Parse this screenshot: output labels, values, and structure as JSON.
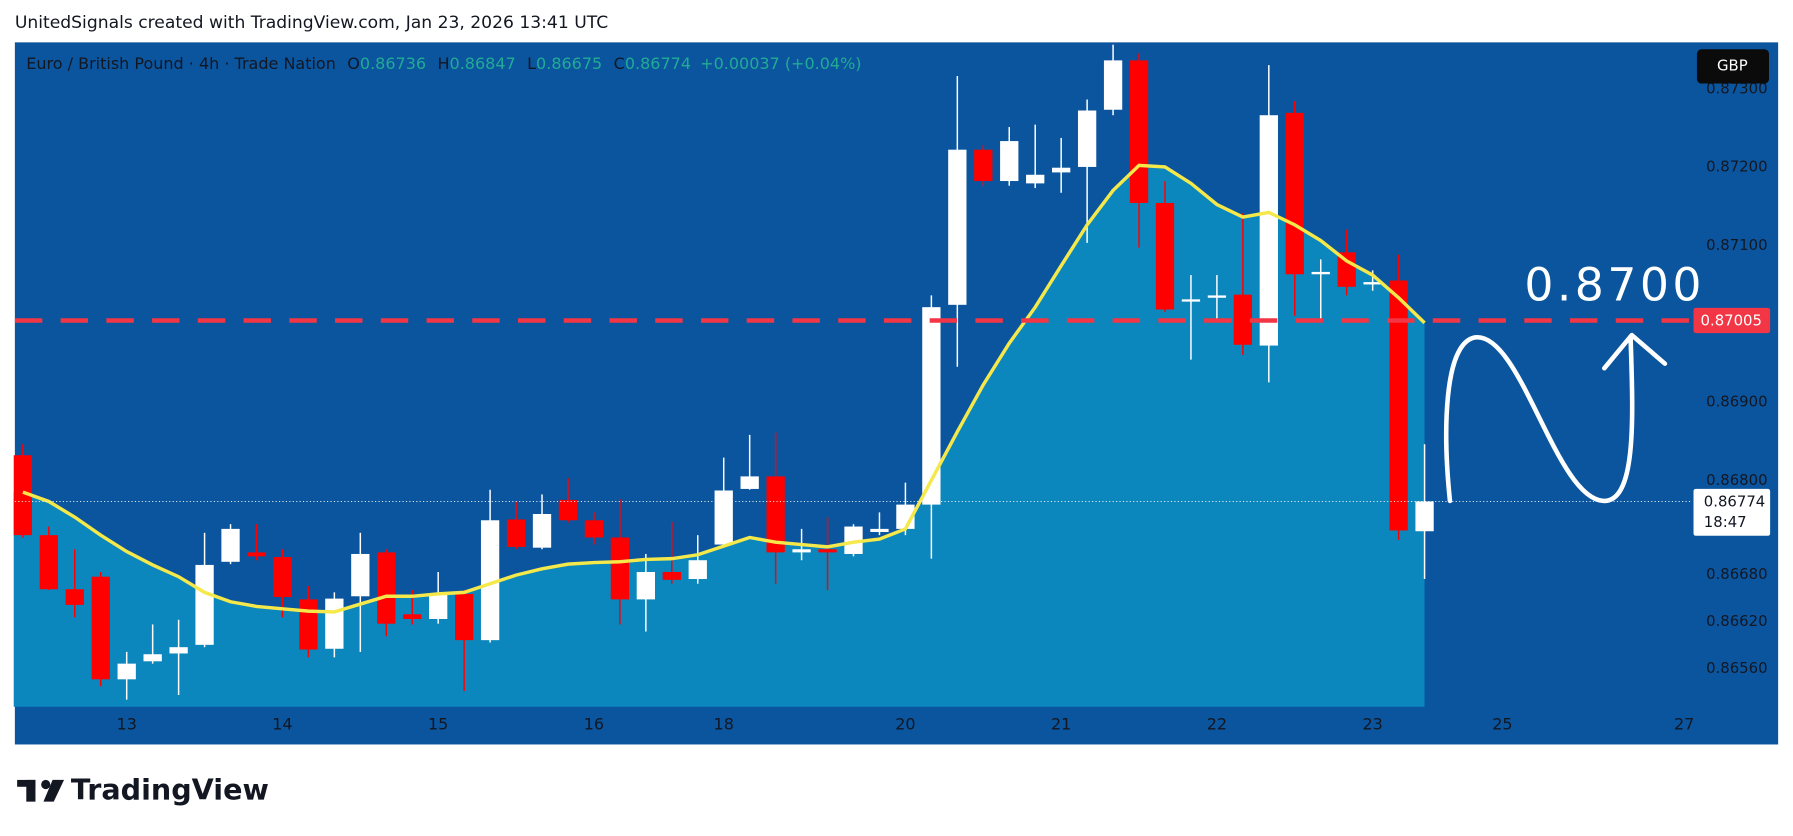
{
  "caption": "UnitedSignals created with TradingView.com, Jan 23, 2026 13:41 UTC",
  "logo_text": "TradingView",
  "chart_data": {
    "type": "candlestick",
    "title": "Euro / British Pound · 4h · Trade Nation",
    "ohlc_letters": [
      "O",
      "H",
      "L",
      "C"
    ],
    "change": "+0.00037 (+0.04%)",
    "currency": "GBP",
    "countdown": "18:47",
    "annotation": "0.8700",
    "up_color": "#ffffff",
    "down_color": "#ff0000",
    "grid": false,
    "categories": [
      null,
      null,
      null,
      null,
      "13",
      null,
      null,
      null,
      null,
      null,
      "14",
      null,
      null,
      null,
      null,
      null,
      "15",
      null,
      null,
      null,
      null,
      null,
      "16",
      null,
      null,
      null,
      null,
      "18",
      null,
      null,
      null,
      null,
      null,
      null,
      "20",
      null,
      null,
      null,
      null,
      null,
      "21",
      null,
      null,
      null,
      null,
      null,
      "22",
      null,
      null,
      null,
      null,
      null,
      "23",
      null,
      null,
      null,
      null,
      "25",
      null,
      null,
      null,
      null,
      null,
      null,
      "27"
    ],
    "open": [
      0.86833,
      0.86731,
      0.86662,
      0.86678,
      0.86547,
      0.8657,
      0.8658,
      0.86591,
      0.86697,
      0.86709,
      0.86703,
      0.86649,
      0.86586,
      0.86653,
      0.86709,
      0.8663,
      0.86624,
      0.86656,
      0.86597,
      0.86751,
      0.86715,
      0.86776,
      0.8675,
      0.86728,
      0.86649,
      0.86684,
      0.86675,
      0.86719,
      0.8679,
      0.86806,
      0.86709,
      0.86713,
      0.86707,
      0.86735,
      0.86739,
      0.8677,
      0.87025,
      0.87223,
      0.87183,
      0.8718,
      0.87194,
      0.87201,
      0.87274,
      0.87337,
      0.87155,
      0.87031,
      0.87034,
      0.87038,
      0.86973,
      0.8727,
      0.87064,
      0.87092,
      0.87051,
      0.87056,
      0.86736,
      null,
      null,
      null,
      null,
      null,
      null,
      null,
      null,
      null,
      null
    ],
    "high": [
      0.86847,
      0.86742,
      0.86713,
      0.86684,
      0.86582,
      0.86617,
      0.86623,
      0.86734,
      0.86745,
      0.86745,
      0.86713,
      0.86666,
      0.86658,
      0.86734,
      0.86713,
      0.86661,
      0.86684,
      0.86661,
      0.86789,
      0.86774,
      0.86783,
      0.86804,
      0.8676,
      0.86777,
      0.86707,
      0.86748,
      0.86731,
      0.8683,
      0.86859,
      0.86862,
      0.86739,
      0.86754,
      0.86745,
      0.8676,
      0.86798,
      0.87037,
      0.87317,
      0.87229,
      0.87252,
      0.87255,
      0.87238,
      0.87287,
      0.87357,
      0.87346,
      0.87183,
      0.87063,
      0.87063,
      0.87142,
      0.87331,
      0.87285,
      0.87083,
      0.87121,
      0.87069,
      0.87089,
      0.86847,
      null,
      null,
      null,
      null,
      null,
      null,
      null,
      null,
      null,
      null
    ],
    "low": [
      0.86728,
      0.86661,
      0.86626,
      0.86538,
      0.86521,
      0.86567,
      0.86527,
      0.86588,
      0.86694,
      0.86699,
      0.86626,
      0.86575,
      0.86575,
      0.86582,
      0.86602,
      0.86617,
      0.86618,
      0.86532,
      0.86594,
      0.86713,
      0.86713,
      0.86747,
      0.86719,
      0.86617,
      0.86608,
      0.86669,
      0.86669,
      0.86716,
      0.86789,
      0.86669,
      0.86699,
      0.86661,
      0.86704,
      0.86731,
      0.86731,
      0.86701,
      0.86946,
      0.87177,
      0.87177,
      0.87174,
      0.87168,
      0.87104,
      0.87267,
      0.87098,
      0.87016,
      0.86955,
      0.87005,
      0.86961,
      0.86926,
      0.87011,
      0.87005,
      0.87037,
      0.87043,
      0.86725,
      0.86675,
      null,
      null,
      null,
      null,
      null,
      null,
      null,
      null,
      null,
      null
    ],
    "close": [
      0.86731,
      0.86662,
      0.86642,
      0.86547,
      0.86567,
      0.86579,
      0.86588,
      0.86693,
      0.86739,
      0.86704,
      0.86652,
      0.86585,
      0.8665,
      0.86707,
      0.86618,
      0.86624,
      0.86655,
      0.86597,
      0.8675,
      0.86716,
      0.86758,
      0.8675,
      0.86728,
      0.86649,
      0.86684,
      0.86674,
      0.86699,
      0.86788,
      0.86806,
      0.86709,
      0.86713,
      0.86709,
      0.86742,
      0.86739,
      0.8677,
      0.87022,
      0.87223,
      0.87183,
      0.87234,
      0.87191,
      0.872,
      0.87273,
      0.87337,
      0.87155,
      0.87019,
      0.87032,
      0.87037,
      0.86974,
      0.87267,
      0.87064,
      0.87067,
      0.87048,
      0.87054,
      0.86737,
      0.86774,
      null,
      null,
      null,
      null,
      null,
      null,
      null,
      null,
      null,
      null
    ],
    "overlay": {
      "type": "line",
      "color": "#f5e84a",
      "area_color": "#0b87bd",
      "values": [
        0.86786,
        0.86774,
        0.86754,
        0.86731,
        0.8671,
        0.86693,
        0.86678,
        0.86658,
        0.86646,
        0.8664,
        0.86637,
        0.86634,
        0.86633,
        0.86643,
        0.86653,
        0.86653,
        0.86656,
        0.86658,
        0.86669,
        0.8668,
        0.86688,
        0.86694,
        0.86696,
        0.86697,
        0.867,
        0.86701,
        0.86706,
        0.86717,
        0.86728,
        0.86722,
        0.86719,
        0.86716,
        0.86722,
        0.86726,
        0.86739,
        0.86801,
        0.86863,
        0.86923,
        0.86976,
        0.87022,
        0.87075,
        0.87127,
        0.87171,
        0.87203,
        0.87201,
        0.8718,
        0.87153,
        0.87137,
        0.87143,
        0.87127,
        0.87107,
        0.87081,
        0.87063,
        0.87034,
        0.87002,
        null,
        null,
        null,
        null,
        null,
        null,
        null,
        null,
        null,
        null
      ]
    },
    "level": {
      "value": 0.87005,
      "color": "#f23645"
    },
    "ylim": [
      0.86512,
      0.8736
    ],
    "yticks": [
      {
        "value": 0.8656,
        "label": "0.86560"
      },
      {
        "value": 0.8662,
        "label": "0.86620"
      },
      {
        "value": 0.8668,
        "label": "0.86680"
      },
      {
        "value": 0.868,
        "label": "0.86800"
      },
      {
        "value": 0.869,
        "label": "0.86900"
      },
      {
        "value": 0.871,
        "label": "0.87100"
      },
      {
        "value": 0.872,
        "label": "0.87200"
      },
      {
        "value": 0.873,
        "label": "0.87300"
      }
    ]
  }
}
